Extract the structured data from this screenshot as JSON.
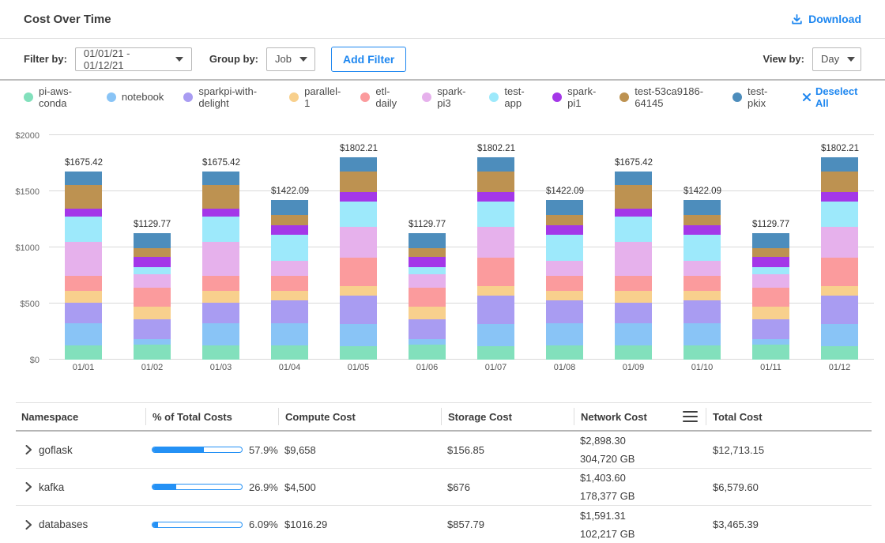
{
  "header": {
    "title": "Cost Over Time",
    "download_label": "Download"
  },
  "filters": {
    "filter_by_label": "Filter by:",
    "date_range": "01/01/21 - 01/12/21",
    "group_by_label": "Group by:",
    "group_by_value": "Job",
    "add_filter_label": "Add Filter",
    "view_by_label": "View by:",
    "view_by_value": "Day"
  },
  "legend": {
    "deselect_all_label": "Deselect All",
    "items": [
      {
        "label": "pi-aws-conda",
        "color": "#82e0bc"
      },
      {
        "label": "notebook",
        "color": "#89c4f6"
      },
      {
        "label": "sparkpi-with-delight",
        "color": "#a99cf2"
      },
      {
        "label": "parallel-1",
        "color": "#f8d08d"
      },
      {
        "label": "etl-daily",
        "color": "#fb9b9d"
      },
      {
        "label": "spark-pi3",
        "color": "#e6b1ec"
      },
      {
        "label": "test-app",
        "color": "#9de9fb"
      },
      {
        "label": "spark-pi1",
        "color": "#a437e8"
      },
      {
        "label": "test-53ca9186-64145",
        "color": "#bd9251"
      },
      {
        "label": "test-pkix",
        "color": "#4d8dbc"
      }
    ]
  },
  "chart_data": {
    "type": "bar",
    "stacked": true,
    "title": "Cost Over Time",
    "ylim": [
      0,
      2000
    ],
    "y_ticks": [
      "$0",
      "$500",
      "$1000",
      "$1500",
      "$2000"
    ],
    "grid": true,
    "legend_position": "top",
    "categories": [
      "01/01",
      "01/02",
      "01/03",
      "01/04",
      "01/05",
      "01/06",
      "01/07",
      "01/08",
      "01/09",
      "01/10",
      "01/11",
      "01/12"
    ],
    "totals": [
      "$1675.42",
      "$1129.77",
      "$1675.42",
      "$1422.09",
      "$1802.21",
      "$1129.77",
      "$1802.21",
      "$1422.09",
      "$1675.42",
      "$1422.09",
      "$1129.77",
      "$1802.21"
    ],
    "series": [
      {
        "name": "pi-aws-conda",
        "color": "#82e0bc",
        "values": [
          127,
          132,
          127,
          126,
          122,
          132,
          122,
          126,
          127,
          126,
          132,
          122
        ]
      },
      {
        "name": "notebook",
        "color": "#89c4f6",
        "values": [
          195,
          51,
          195,
          195,
          195,
          51,
          195,
          195,
          195,
          195,
          51,
          195
        ]
      },
      {
        "name": "sparkpi-with-delight",
        "color": "#a99cf2",
        "values": [
          183,
          177,
          183,
          206,
          252,
          177,
          252,
          206,
          183,
          206,
          177,
          252
        ]
      },
      {
        "name": "parallel-1",
        "color": "#f8d08d",
        "values": [
          110,
          114,
          110,
          85,
          89,
          114,
          89,
          85,
          110,
          85,
          114,
          89
        ]
      },
      {
        "name": "etl-daily",
        "color": "#fb9b9d",
        "values": [
          134,
          164,
          134,
          134,
          252,
          164,
          252,
          134,
          134,
          134,
          164,
          252
        ]
      },
      {
        "name": "spark-pi3",
        "color": "#e6b1ec",
        "values": [
          304,
          126,
          304,
          134,
          270,
          126,
          270,
          134,
          304,
          134,
          126,
          270
        ]
      },
      {
        "name": "test-app",
        "color": "#9de9fb",
        "values": [
          219,
          63,
          219,
          231,
          228,
          63,
          228,
          231,
          219,
          231,
          63,
          228
        ]
      },
      {
        "name": "spark-pi1",
        "color": "#a437e8",
        "values": [
          73,
          88,
          73,
          85,
          85,
          88,
          85,
          85,
          73,
          85,
          88,
          85
        ]
      },
      {
        "name": "test-53ca9186-64145",
        "color": "#bd9251",
        "values": [
          213,
          76,
          213,
          90,
          181,
          76,
          181,
          90,
          213,
          90,
          76,
          181
        ]
      },
      {
        "name": "test-pkix",
        "color": "#4d8dbc",
        "values": [
          117.42,
          138.77,
          117.42,
          136.09,
          128.21,
          138.77,
          128.21,
          136.09,
          117.42,
          136.09,
          138.77,
          128.21
        ]
      }
    ]
  },
  "table": {
    "columns": [
      "Namespace",
      "% of Total Costs",
      "Compute Cost",
      "Storage Cost",
      "Network Cost",
      "Total Cost"
    ],
    "rows": [
      {
        "namespace": "goflask",
        "percent": "57.9%",
        "percent_value": 57.9,
        "compute": "$9,658",
        "storage": "$156.85",
        "network_cost": "$2,898.30",
        "network_gb": "304,720 GB",
        "total": "$12,713.15"
      },
      {
        "namespace": "kafka",
        "percent": "26.9%",
        "percent_value": 26.9,
        "compute": "$4,500",
        "storage": "$676",
        "network_cost": "$1,403.60",
        "network_gb": "178,377 GB",
        "total": "$6,579.60"
      },
      {
        "namespace": "databases",
        "percent": "6.09%",
        "percent_value": 6.09,
        "compute": "$1016.29",
        "storage": "$857.79",
        "network_cost": "$1,591.31",
        "network_gb": "102,217 GB",
        "total": "$3,465.39"
      }
    ]
  }
}
